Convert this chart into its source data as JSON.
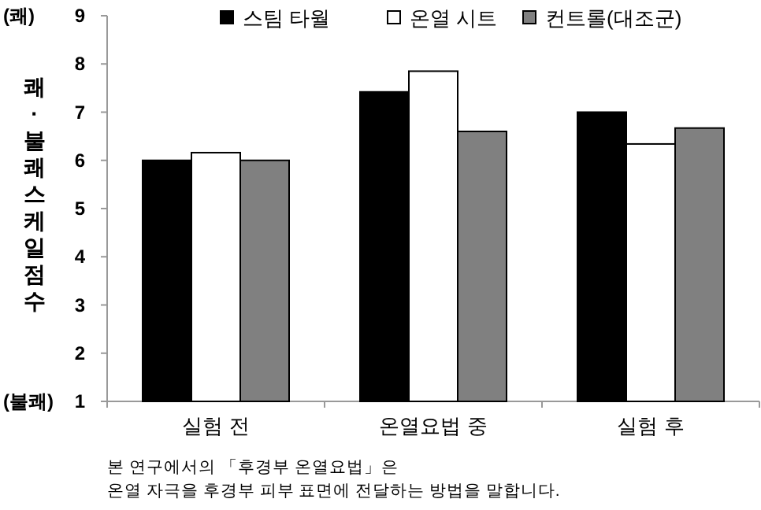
{
  "chart_data": {
    "type": "bar",
    "ylabel": "쾌·불쾌 스케일 점수",
    "categories": [
      "실험 전",
      "온열요법 중",
      "실험 후"
    ],
    "series": [
      {
        "name": "스팀 타월",
        "color": "#000000",
        "values": [
          6.0,
          7.42,
          7.0
        ]
      },
      {
        "name": "온열 시트",
        "color": "#ffffff",
        "values": [
          6.16,
          7.85,
          6.34
        ]
      },
      {
        "name": "컨트롤(대조군)",
        "color": "#808080",
        "values": [
          6.0,
          6.6,
          6.67
        ]
      }
    ],
    "ylim": [
      1,
      9
    ],
    "yticks": [
      1,
      2,
      3,
      4,
      5,
      6,
      7,
      8,
      9
    ],
    "legend": "top",
    "grid": false,
    "annotations": [
      "(쾌)",
      "(불쾌)",
      "본 연구에서의 「후경부 온열요법」은\n온열 자극을 후경부 피부 표면에 전달하는 방법을 말합니다."
    ]
  }
}
